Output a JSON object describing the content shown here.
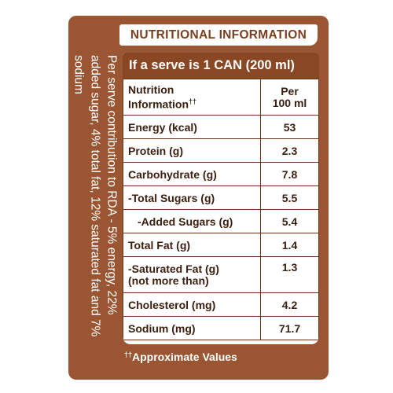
{
  "title": "NUTRITIONAL INFORMATION",
  "side_note": "Per serve contribution to RDA - 5% energy, 22% added sugar, 4% total fat, 12% saturated fat and 7% sodium",
  "serve_header": "If a serve is 1 CAN (200 ml)",
  "column_headers": {
    "label_line1": "Nutrition",
    "label_line2": "Information",
    "label_mark": "††",
    "value_line1": "Per",
    "value_line2": "100 ml"
  },
  "rows": [
    {
      "label": "Energy (kcal)",
      "value": "53"
    },
    {
      "label": "Protein (g)",
      "value": "2.3"
    },
    {
      "label": "Carbohydrate (g)",
      "value": "7.8"
    },
    {
      "label": "-Total Sugars (g)",
      "value": "5.5"
    },
    {
      "label": "-Added Sugars (g)",
      "value": "5.4"
    },
    {
      "label": "Total Fat (g)",
      "value": "1.4"
    },
    {
      "label": "-Saturated Fat (g)",
      "label2": "(not more than)",
      "value": "1.3"
    },
    {
      "label": "Cholesterol (mg)",
      "value": "4.2"
    },
    {
      "label": "Sodium (mg)",
      "value": "71.7"
    }
  ],
  "footnote": {
    "mark": "††",
    "text": "Approximate Values"
  },
  "colors": {
    "panel": "#9a5632",
    "header": "#8a4724",
    "text_dark": "#3a1e10",
    "title_text": "#7b3f20"
  }
}
